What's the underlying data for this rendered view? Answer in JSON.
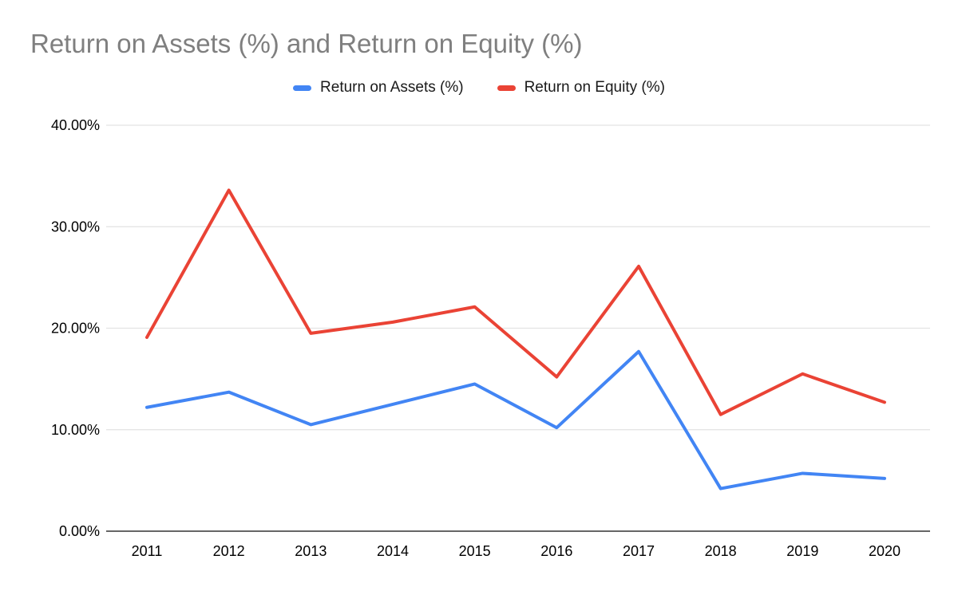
{
  "chart_data": {
    "type": "line",
    "title": "Return on Assets (%) and Return on Equity (%)",
    "xlabel": "",
    "ylabel": "",
    "x": [
      "2011",
      "2012",
      "2013",
      "2014",
      "2015",
      "2016",
      "2017",
      "2018",
      "2019",
      "2020"
    ],
    "series": [
      {
        "name": "Return on Assets (%)",
        "color": "#4285F4",
        "values": [
          12.2,
          13.7,
          10.5,
          12.5,
          14.5,
          10.2,
          17.7,
          4.2,
          5.7,
          5.2
        ]
      },
      {
        "name": "Return on Equity (%)",
        "color": "#EA4335",
        "values": [
          19.1,
          33.6,
          19.5,
          20.6,
          22.1,
          15.2,
          26.1,
          11.5,
          15.5,
          12.7
        ]
      }
    ],
    "ylim": [
      0,
      40
    ],
    "yticks": [
      {
        "value": 0,
        "label": "0.00%"
      },
      {
        "value": 10,
        "label": "10.00%"
      },
      {
        "value": 20,
        "label": "20.00%"
      },
      {
        "value": 30,
        "label": "30.00%"
      },
      {
        "value": 40,
        "label": "40.00%"
      }
    ],
    "grid": true,
    "legend_position": "top",
    "grid_color": "#e3e3e3",
    "axis_color": "#333333"
  }
}
